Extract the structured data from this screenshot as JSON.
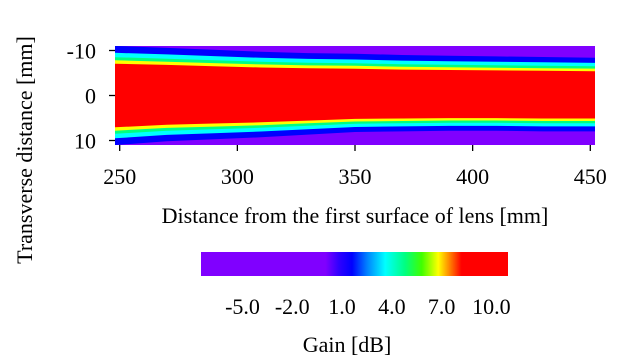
{
  "chart_data": {
    "type": "heatmap",
    "xlabel": "Distance from the first surface of lens [mm]",
    "ylabel": "Transverse distance [mm]",
    "x_range": [
      248,
      452
    ],
    "y_range": [
      -11,
      11
    ],
    "x_ticks": [
      {
        "value": 250,
        "label": "250"
      },
      {
        "value": 300,
        "label": "300"
      },
      {
        "value": 350,
        "label": "350"
      },
      {
        "value": 400,
        "label": "400"
      },
      {
        "value": 450,
        "label": "450"
      }
    ],
    "y_ticks": [
      {
        "value": -10,
        "label": "-10"
      },
      {
        "value": 0,
        "label": "0"
      },
      {
        "value": 10,
        "label": "10"
      }
    ],
    "beam_profile": {
      "x": [
        248,
        270,
        290,
        310,
        330,
        350,
        370,
        390,
        410,
        430,
        452
      ],
      "upper_edge": [
        -7.6,
        -7.3,
        -7.0,
        -6.7,
        -6.5,
        -6.4,
        -6.2,
        -6.1,
        -6.0,
        -5.9,
        -5.8
      ],
      "lower_edge": [
        7.6,
        7.0,
        6.7,
        6.4,
        6.0,
        5.6,
        5.5,
        5.4,
        5.4,
        5.5,
        5.5
      ],
      "unit": "mm"
    },
    "colorbar": {
      "label": "Gain [dB]",
      "range": [
        -7.5,
        11.0
      ],
      "ticks": [
        {
          "value": -5.0,
          "label": "-5.0"
        },
        {
          "value": -2.0,
          "label": "-2.0"
        },
        {
          "value": 1.0,
          "label": "1.0"
        },
        {
          "value": 4.0,
          "label": "4.0"
        },
        {
          "value": 7.0,
          "label": "7.0"
        },
        {
          "value": 10.0,
          "label": "10.0"
        }
      ],
      "stops": [
        {
          "value": -7.5,
          "color": "#8000ff"
        },
        {
          "value": 0.0,
          "color": "#8000ff"
        },
        {
          "value": 0.8,
          "color": "#3000ff"
        },
        {
          "value": 1.6,
          "color": "#0000ff"
        },
        {
          "value": 2.5,
          "color": "#0080ff"
        },
        {
          "value": 3.6,
          "color": "#00ffff"
        },
        {
          "value": 4.8,
          "color": "#00ff80"
        },
        {
          "value": 5.8,
          "color": "#40ff00"
        },
        {
          "value": 6.8,
          "color": "#ffff00"
        },
        {
          "value": 7.5,
          "color": "#ff8000"
        },
        {
          "value": 8.2,
          "color": "#ff0000"
        },
        {
          "value": 11.0,
          "color": "#ff0000"
        }
      ]
    }
  }
}
